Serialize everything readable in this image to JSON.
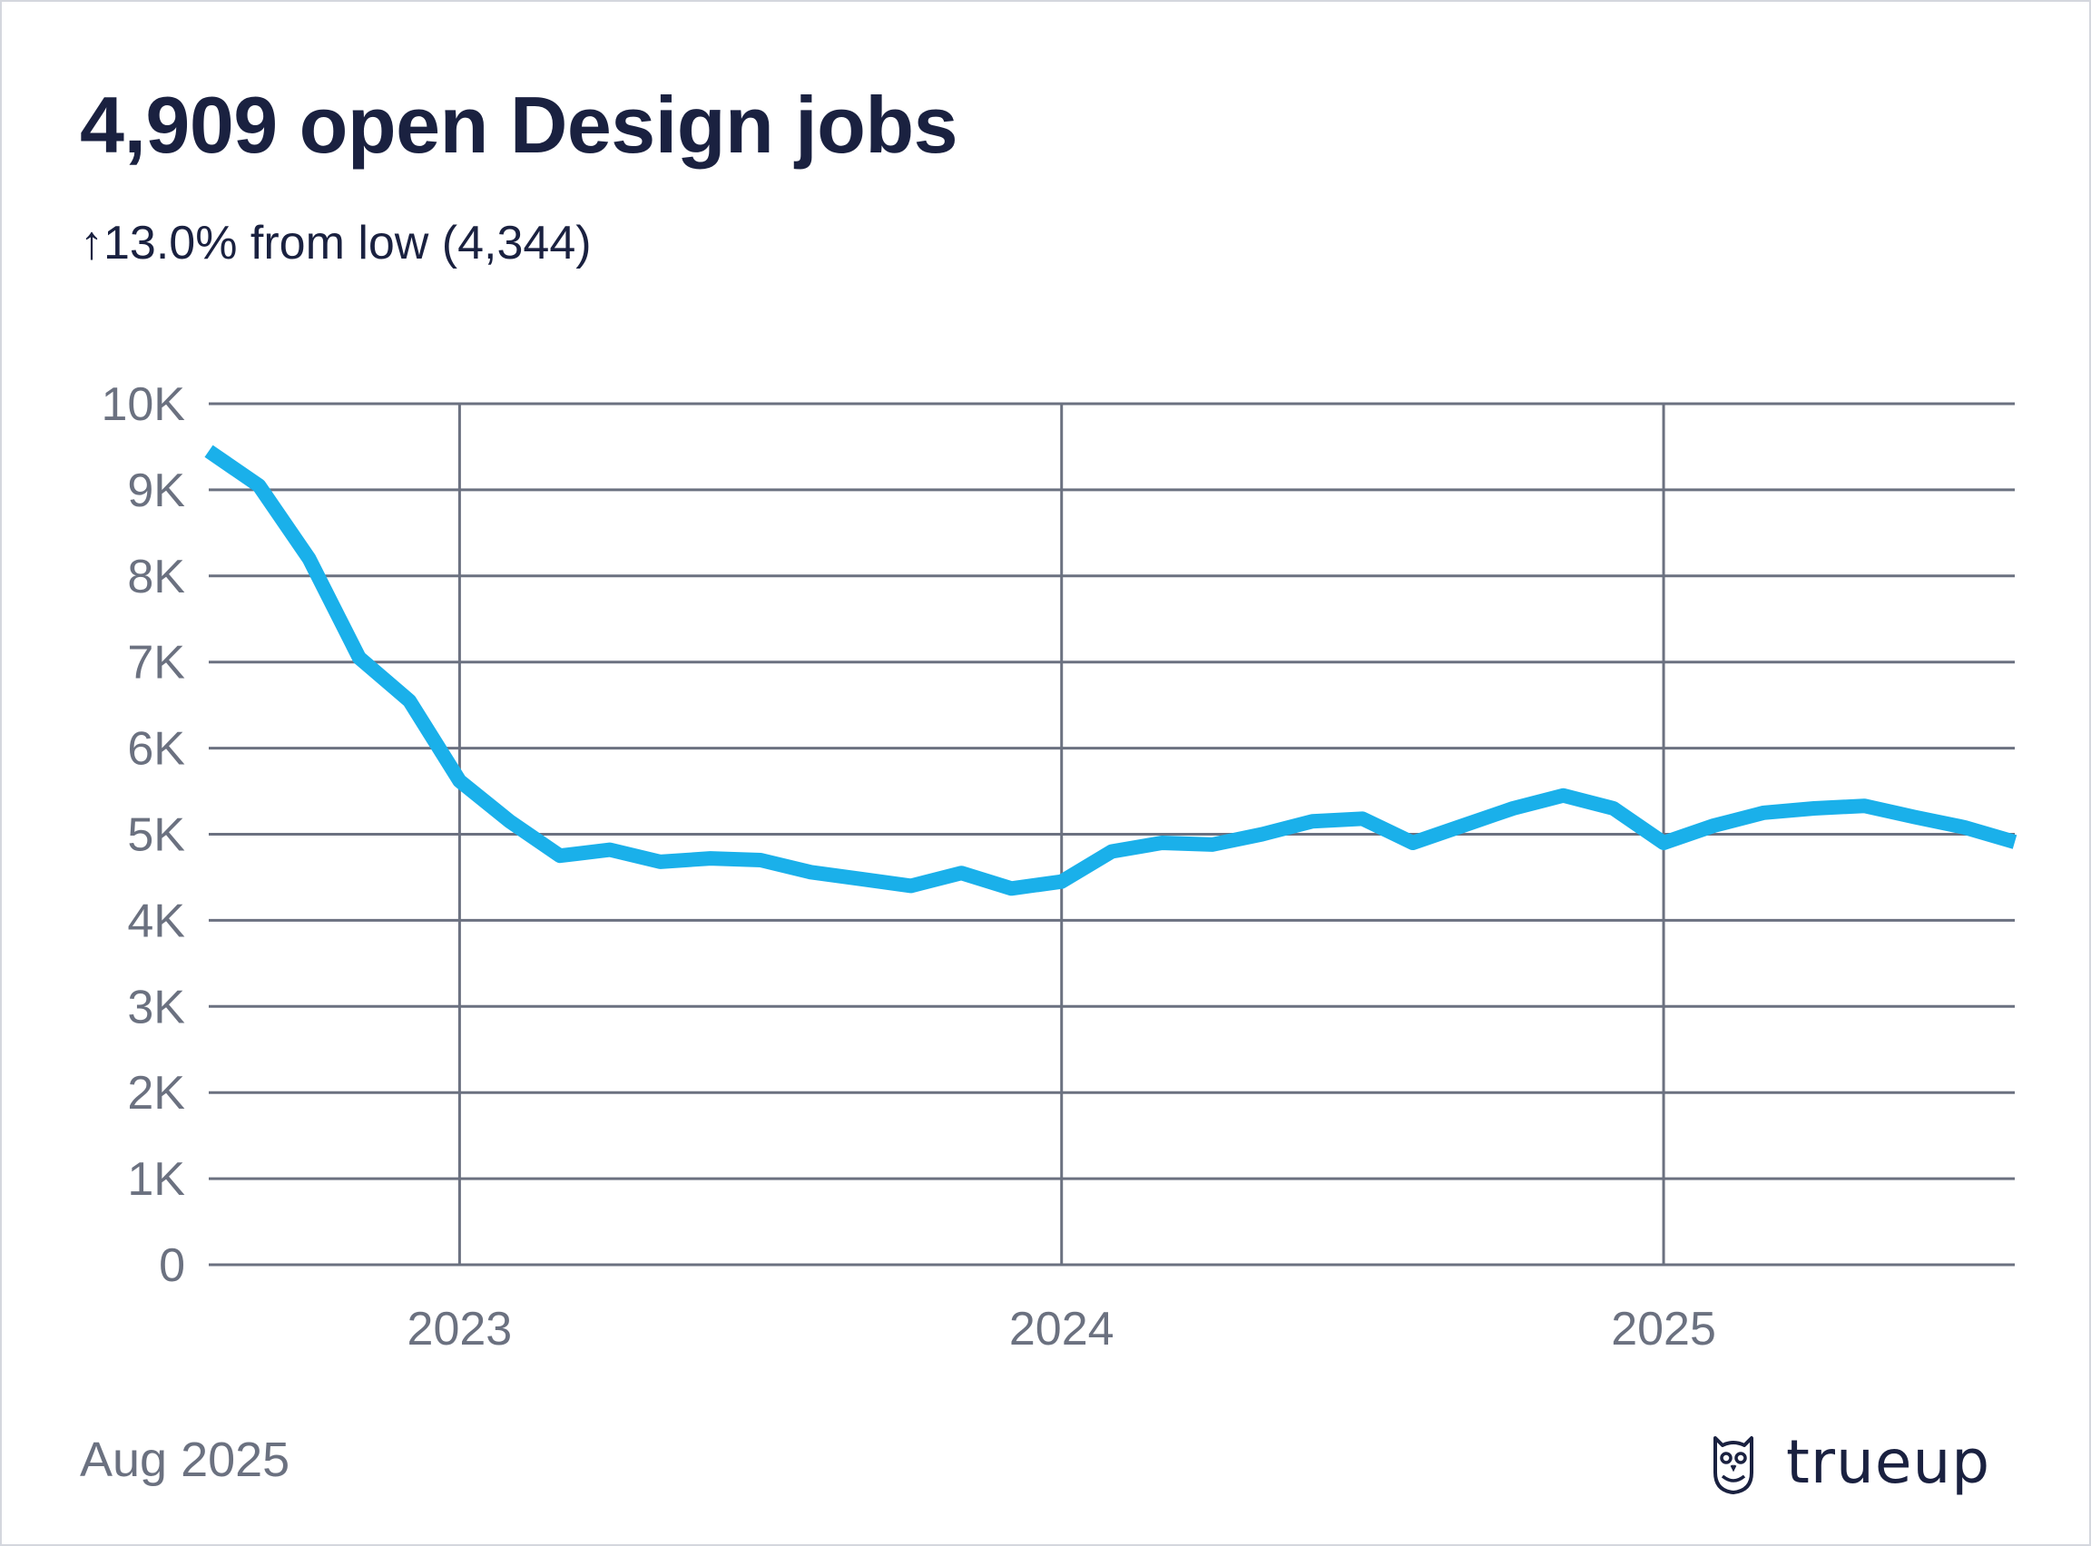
{
  "header": {
    "title": "4,909 open Design jobs",
    "subtitle": "↑13.0% from low (4,344)"
  },
  "footer": {
    "date": "Aug 2025",
    "brand": "trueup",
    "brand_icon": "owl-icon"
  },
  "colors": {
    "line": "#1ab0ea",
    "grid": "#6b7180",
    "tick_text": "#6b7180",
    "title_text": "#1a2140"
  },
  "chart_data": {
    "type": "line",
    "title": "4,909 open Design jobs",
    "subtitle": "↑13.0% from low (4,344)",
    "xlabel": "",
    "ylabel": "",
    "x_ticks": [
      "2023",
      "2024",
      "2025"
    ],
    "y_ticks": [
      "0",
      "1K",
      "2K",
      "3K",
      "4K",
      "5K",
      "6K",
      "7K",
      "8K",
      "9K",
      "10K"
    ],
    "ylim": [
      0,
      10000
    ],
    "xlim": [
      "2022-08",
      "2025-08"
    ],
    "grid": true,
    "legend": "none",
    "series": [
      {
        "x": [
          "2022-08",
          "2022-09",
          "2022-10",
          "2022-11",
          "2022-12",
          "2023-01",
          "2023-02",
          "2023-03",
          "2023-04",
          "2023-05",
          "2023-06",
          "2023-07",
          "2023-08",
          "2023-09",
          "2023-10",
          "2023-11",
          "2023-12",
          "2024-01",
          "2024-02",
          "2024-03",
          "2024-04",
          "2024-05",
          "2024-06",
          "2024-07",
          "2024-08",
          "2024-09",
          "2024-10",
          "2024-11",
          "2024-12",
          "2025-01",
          "2025-02",
          "2025-03",
          "2025-04",
          "2025-05",
          "2025-06",
          "2025-07",
          "2025-08"
        ],
        "values": [
          9450,
          9050,
          8200,
          7050,
          6550,
          5620,
          5150,
          4750,
          4820,
          4680,
          4720,
          4700,
          4560,
          4480,
          4400,
          4550,
          4370,
          4450,
          4800,
          4900,
          4880,
          5000,
          5150,
          5180,
          4900,
          5100,
          5300,
          5450,
          5300,
          4900,
          5100,
          5250,
          5300,
          5330,
          5200,
          5080,
          4909
        ]
      }
    ]
  }
}
